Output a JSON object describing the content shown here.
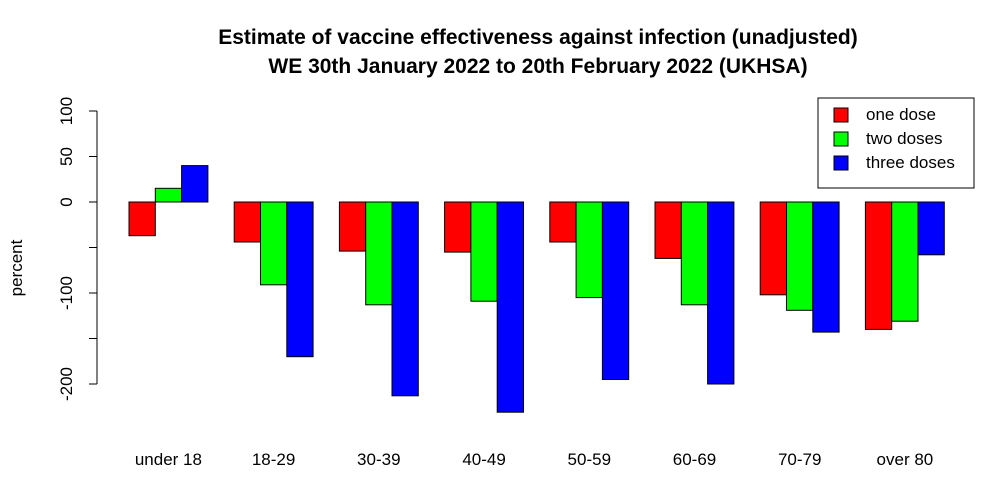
{
  "chart_data": {
    "type": "bar",
    "title": "Estimate of vaccine effectiveness against infection (unadjusted)",
    "subtitle": "WE 30th January 2022 to 20th February 2022 (UKHSA)",
    "xlabel": "",
    "ylabel": "percent",
    "categories": [
      "under 18",
      "18-29",
      "30-39",
      "40-49",
      "50-59",
      "60-69",
      "70-79",
      "over 80"
    ],
    "series": [
      {
        "name": "one dose",
        "color": "#ff0000",
        "values": [
          -37,
          -44,
          -54,
          -55,
          -44,
          -62,
          -102,
          -140
        ]
      },
      {
        "name": "two doses",
        "color": "#00ff00",
        "values": [
          15,
          -91,
          -113,
          -109,
          -105,
          -113,
          -119,
          -131
        ]
      },
      {
        "name": "three doses",
        "color": "#0000ff",
        "values": [
          40,
          -170,
          -213,
          -231,
          -195,
          -200,
          -143,
          -58
        ]
      }
    ],
    "y_ticks": [
      -200,
      -100,
      0,
      50,
      100
    ],
    "y_tick_labels": [
      "-200",
      "-100",
      "0",
      "50",
      "100"
    ],
    "ylim": [
      -235,
      100
    ],
    "grid": false,
    "legend_position": "top-right"
  }
}
